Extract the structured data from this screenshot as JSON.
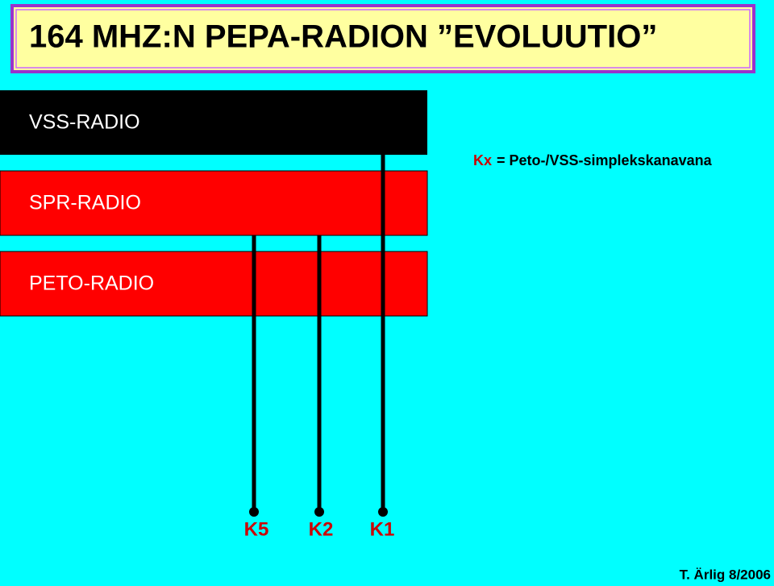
{
  "header": {
    "title": "164 MHZ:N PEPA-RADION ”EVOLUUTIO”"
  },
  "blocks": [
    {
      "label": "VSS-RADIO"
    },
    {
      "label": "SPR-RADIO"
    },
    {
      "label": "PETO-RADIO"
    }
  ],
  "legend": {
    "key": "Kx",
    "text": "= Peto-/VSS-simplekskanavana"
  },
  "channels": [
    {
      "label": "K5"
    },
    {
      "label": "K2"
    },
    {
      "label": "K1"
    }
  ],
  "footer": "T. Ärlig 8/2006"
}
